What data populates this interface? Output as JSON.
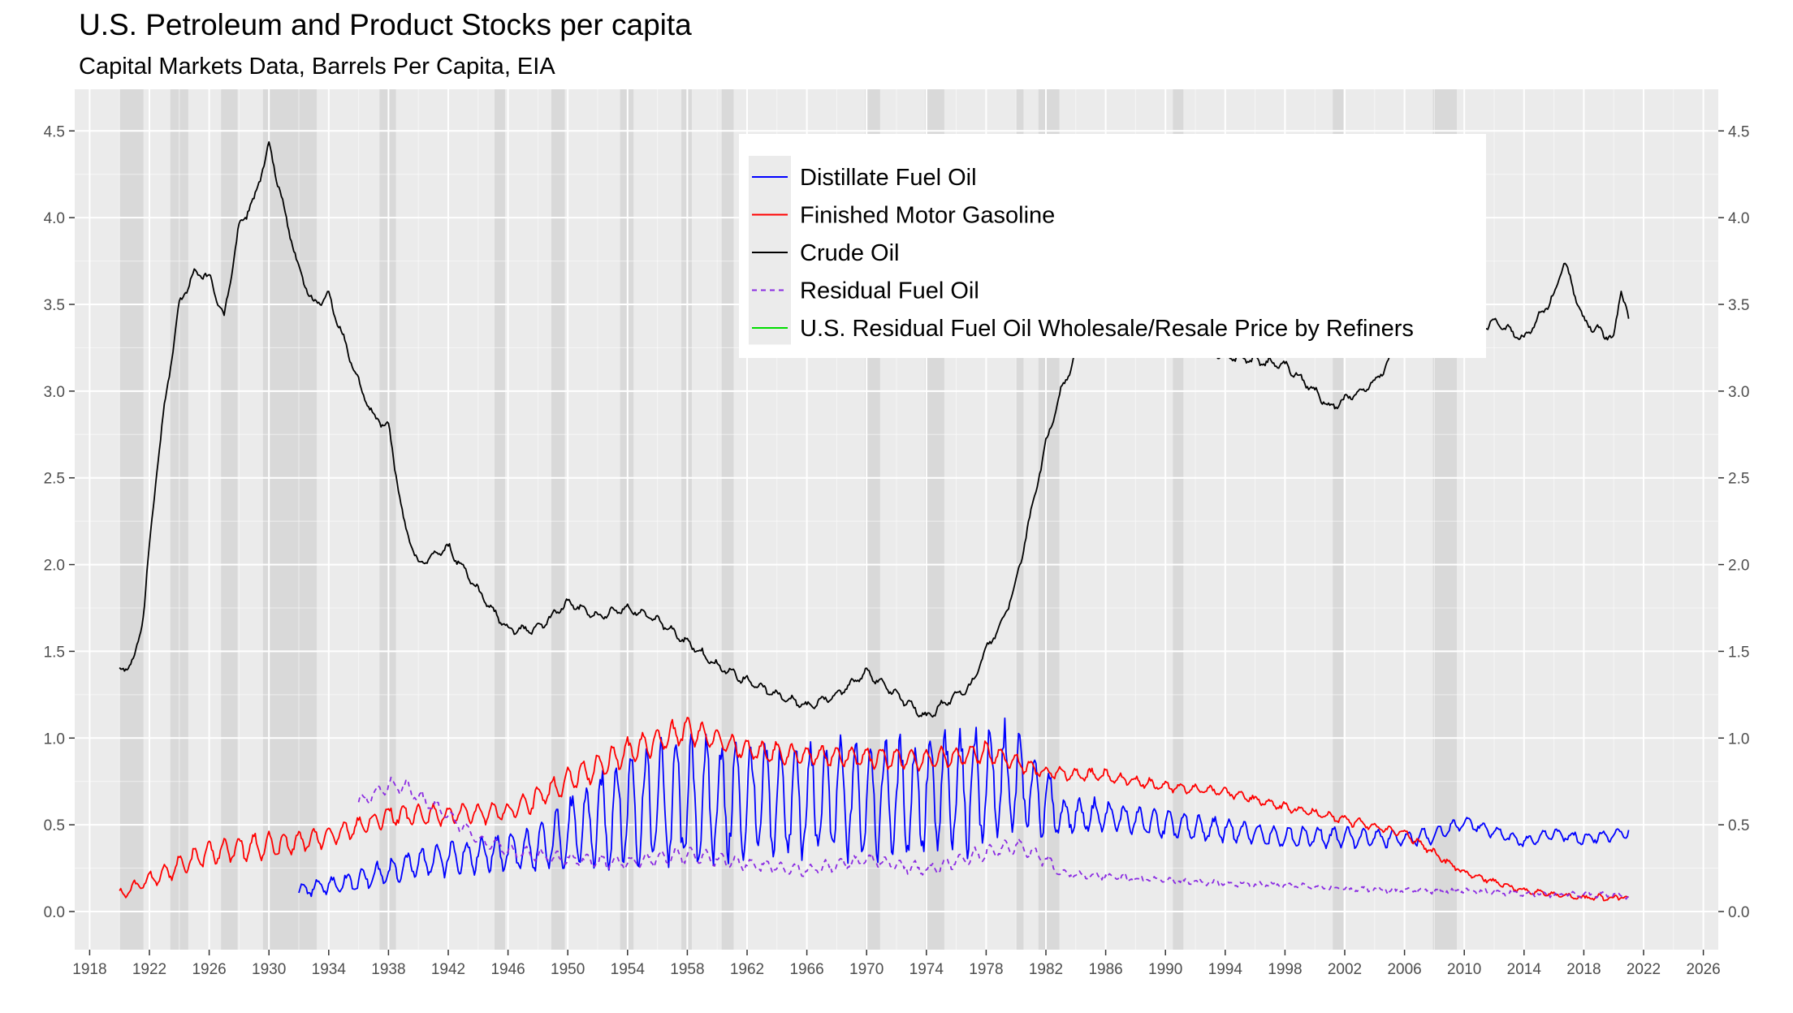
{
  "chart_data": {
    "type": "line",
    "title": "U.S. Petroleum and Product Stocks per capita",
    "subtitle": "Capital Markets Data, Barrels Per Capita, EIA",
    "xlabel": "",
    "ylabel": "",
    "xlim": [
      1917,
      2027
    ],
    "ylim": [
      -0.22,
      4.74
    ],
    "x_ticks": [
      1918,
      1922,
      1926,
      1930,
      1934,
      1938,
      1942,
      1946,
      1950,
      1954,
      1958,
      1962,
      1966,
      1970,
      1974,
      1978,
      1982,
      1986,
      1990,
      1994,
      1998,
      2002,
      2006,
      2010,
      2014,
      2018,
      2022,
      2026
    ],
    "y_ticks": [
      0.0,
      0.5,
      1.0,
      1.5,
      2.0,
      2.5,
      3.0,
      3.5,
      4.0,
      4.5
    ],
    "y_tick_labels": [
      "0.0",
      "0.5",
      "1.0",
      "1.5",
      "2.0",
      "2.5",
      "3.0",
      "3.5",
      "4.0",
      "4.5"
    ],
    "grid": true,
    "secondary_y_axis": true,
    "legend_position": "top-center",
    "recession_shading": [
      [
        1920.0,
        1921.6
      ],
      [
        1923.4,
        1924.6
      ],
      [
        1926.8,
        1927.9
      ],
      [
        1929.6,
        1933.2
      ],
      [
        1937.4,
        1938.5
      ],
      [
        1945.1,
        1945.8
      ],
      [
        1948.9,
        1949.8
      ],
      [
        1953.5,
        1954.4
      ],
      [
        1957.6,
        1958.3
      ],
      [
        1960.3,
        1961.1
      ],
      [
        1969.9,
        1970.9
      ],
      [
        1973.9,
        1975.2
      ],
      [
        1980.0,
        1980.5
      ],
      [
        1981.5,
        1982.9
      ],
      [
        1990.5,
        1991.2
      ],
      [
        2001.2,
        2001.9
      ],
      [
        2007.9,
        2009.5
      ]
    ],
    "series": [
      {
        "name": "Distillate Fuel Oil",
        "color": "#0000ff",
        "dash": "solid",
        "x": [
          1932,
          1936,
          1940,
          1944,
          1948,
          1950,
          1952,
          1954,
          1956,
          1958,
          1962,
          1966,
          1970,
          1974,
          1976,
          1978,
          1980,
          1982,
          1983,
          1986,
          1990,
          1994,
          1998,
          2002,
          2006,
          2008,
          2010,
          2012,
          2014,
          2016,
          2018,
          2020,
          2021
        ],
        "y": [
          0.12,
          0.18,
          0.28,
          0.33,
          0.36,
          0.45,
          0.52,
          0.6,
          0.62,
          0.63,
          0.64,
          0.63,
          0.66,
          0.66,
          0.7,
          0.72,
          0.74,
          0.64,
          0.55,
          0.55,
          0.5,
          0.47,
          0.43,
          0.43,
          0.42,
          0.44,
          0.52,
          0.46,
          0.4,
          0.45,
          0.42,
          0.44,
          0.46
        ],
        "amplitude": [
          0.03,
          0.05,
          0.08,
          0.09,
          0.12,
          0.18,
          0.24,
          0.3,
          0.32,
          0.33,
          0.3,
          0.3,
          0.31,
          0.3,
          0.32,
          0.34,
          0.28,
          0.18,
          0.1,
          0.08,
          0.07,
          0.06,
          0.05,
          0.05,
          0.04,
          0.04,
          0.03,
          0.03,
          0.03,
          0.03,
          0.03,
          0.03,
          0.03
        ]
      },
      {
        "name": "Finished Motor Gasoline",
        "color": "#ff0000",
        "dash": "solid",
        "x": [
          1920,
          1922,
          1926,
          1930,
          1934,
          1938,
          1942,
          1946,
          1950,
          1954,
          1958,
          1962,
          1966,
          1970,
          1974,
          1978,
          1982,
          1986,
          1990,
          1994,
          1998,
          2002,
          2006,
          2010,
          2014,
          2018,
          2021
        ],
        "y": [
          0.1,
          0.18,
          0.34,
          0.38,
          0.43,
          0.55,
          0.56,
          0.57,
          0.75,
          0.92,
          1.05,
          0.93,
          0.9,
          0.89,
          0.87,
          0.92,
          0.8,
          0.78,
          0.72,
          0.69,
          0.6,
          0.53,
          0.45,
          0.22,
          0.12,
          0.08,
          0.08
        ],
        "amplitude": [
          0.03,
          0.04,
          0.06,
          0.07,
          0.05,
          0.05,
          0.05,
          0.05,
          0.07,
          0.07,
          0.07,
          0.05,
          0.05,
          0.05,
          0.05,
          0.05,
          0.03,
          0.03,
          0.02,
          0.02,
          0.02,
          0.02,
          0.02,
          0.01,
          0.01,
          0.01,
          0.01
        ]
      },
      {
        "name": "Crude Oil",
        "color": "#000000",
        "dash": "solid",
        "x": [
          1920,
          1921,
          1921.6,
          1922,
          1922.5,
          1923,
          1924,
          1925,
          1926,
          1927,
          1928,
          1929,
          1930,
          1931,
          1932,
          1933,
          1934,
          1935,
          1936,
          1937,
          1938,
          1939,
          1940,
          1942,
          1944,
          1946,
          1948,
          1950,
          1952,
          1954,
          1956,
          1958,
          1960,
          1962,
          1964,
          1966,
          1968,
          1970,
          1972,
          1974,
          1976,
          1977,
          1978,
          1979,
          1980,
          1981,
          1982,
          1983,
          1984,
          1985,
          1986,
          1988,
          1990,
          1994,
          1998,
          2000,
          2001,
          2002,
          2004,
          2006,
          2008,
          2010,
          2012,
          2014,
          2016,
          2016.7,
          2018,
          2019,
          2020,
          2020.5,
          2021
        ],
        "y": [
          1.38,
          1.45,
          1.72,
          2.1,
          2.55,
          2.9,
          3.5,
          3.68,
          3.66,
          3.42,
          3.95,
          4.1,
          4.42,
          4.05,
          3.7,
          3.5,
          3.55,
          3.3,
          3.05,
          2.85,
          2.8,
          2.25,
          2.0,
          2.1,
          1.85,
          1.62,
          1.63,
          1.78,
          1.7,
          1.75,
          1.68,
          1.55,
          1.42,
          1.33,
          1.25,
          1.18,
          1.25,
          1.38,
          1.25,
          1.12,
          1.25,
          1.3,
          1.52,
          1.65,
          1.9,
          2.3,
          2.7,
          3.0,
          3.2,
          3.4,
          3.5,
          3.4,
          3.28,
          3.2,
          3.15,
          3.0,
          2.9,
          2.95,
          3.05,
          3.3,
          3.3,
          3.3,
          3.4,
          3.3,
          3.55,
          3.75,
          3.4,
          3.35,
          3.3,
          3.6,
          3.4
        ],
        "amplitude": 0.02
      },
      {
        "name": "Residual Fuel Oil",
        "color": "#8a2be2",
        "dash": "dashed",
        "x": [
          1936,
          1938,
          1939,
          1942,
          1944,
          1946,
          1950,
          1954,
          1958,
          1962,
          1966,
          1970,
          1974,
          1978,
          1980,
          1982,
          1983,
          1986,
          1990,
          1994,
          1998,
          2002,
          2006,
          2010,
          2014,
          2018,
          2021
        ],
        "y": [
          0.63,
          0.72,
          0.72,
          0.55,
          0.42,
          0.35,
          0.3,
          0.28,
          0.33,
          0.27,
          0.24,
          0.3,
          0.24,
          0.34,
          0.38,
          0.3,
          0.22,
          0.2,
          0.18,
          0.16,
          0.15,
          0.13,
          0.12,
          0.12,
          0.1,
          0.1,
          0.09
        ],
        "amplitude": [
          0.03,
          0.04,
          0.04,
          0.03,
          0.03,
          0.03,
          0.03,
          0.03,
          0.04,
          0.03,
          0.03,
          0.03,
          0.03,
          0.04,
          0.04,
          0.03,
          0.02,
          0.01,
          0.01,
          0.01,
          0.01,
          0.01,
          0.01,
          0.01,
          0.01,
          0.01,
          0.01
        ]
      },
      {
        "name": "U.S. Residual Fuel Oil Wholesale/Resale Price by Refiners",
        "color": "#00dd00",
        "dash": "solid",
        "x": [],
        "y": []
      }
    ]
  },
  "colors": {
    "panel_background": "#ebebeb",
    "grid_major": "#ffffff",
    "recession_band": "#d9d9d9",
    "legend_background": "#ffffff",
    "legend_key_background": "#ebebeb"
  }
}
